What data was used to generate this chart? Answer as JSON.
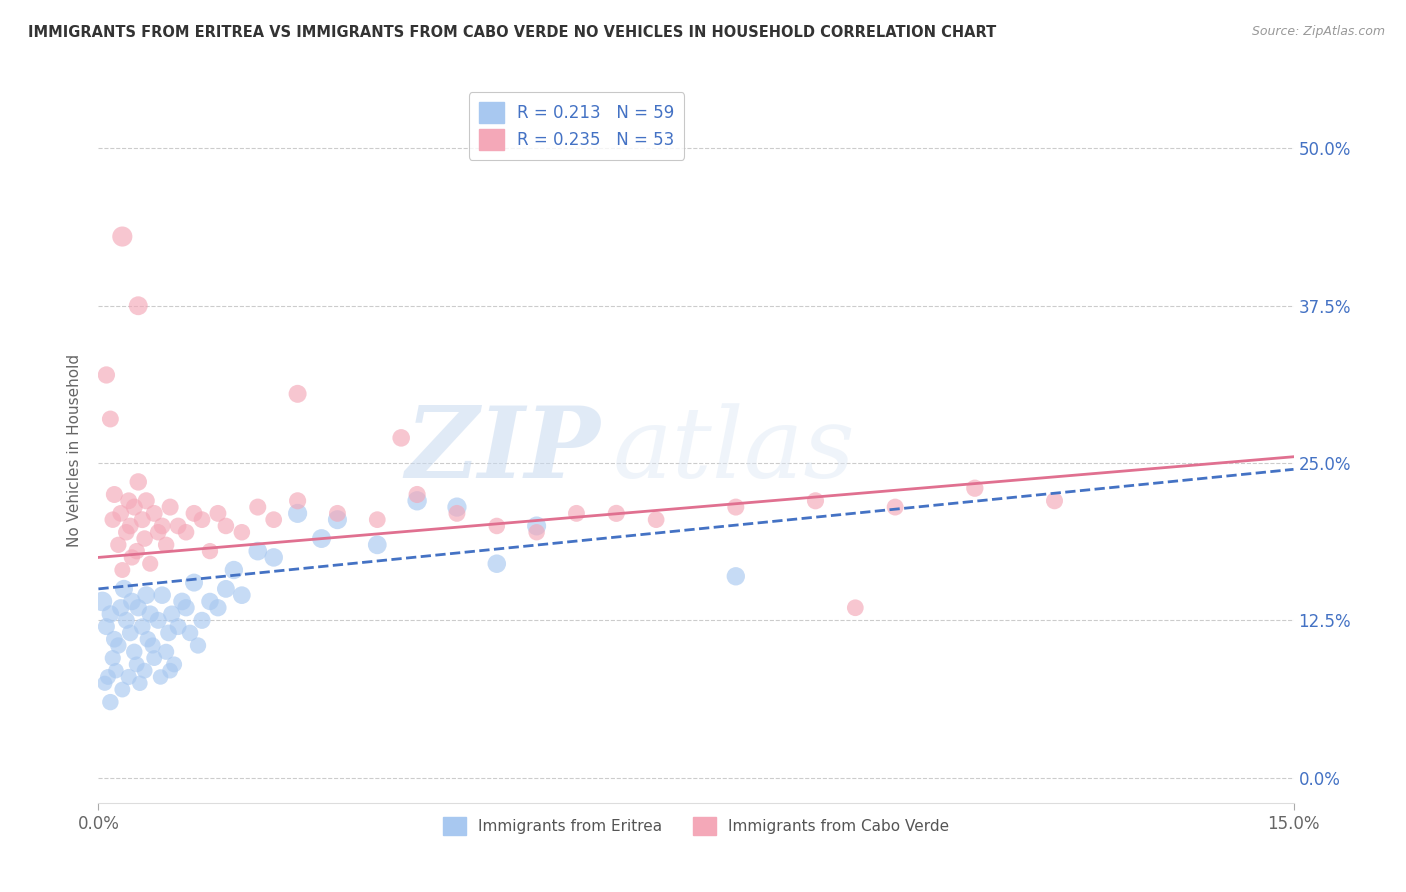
{
  "title": "IMMIGRANTS FROM ERITREA VS IMMIGRANTS FROM CABO VERDE NO VEHICLES IN HOUSEHOLD CORRELATION CHART",
  "source": "Source: ZipAtlas.com",
  "ylabel": "No Vehicles in Household",
  "ytick_vals": [
    0.0,
    12.5,
    25.0,
    37.5,
    50.0
  ],
  "xmin": 0.0,
  "xmax": 15.0,
  "ymin": -2.0,
  "ymax": 54.0,
  "legend1_label": "R = 0.213   N = 59",
  "legend2_label": "R = 0.235   N = 53",
  "legend_xlabel": "Immigrants from Eritrea",
  "legend_ylabel": "Immigrants from Cabo Verde",
  "color_eritrea": "#a8c8f0",
  "color_cabo": "#f4a8b8",
  "line_color_eritrea": "#4472c4",
  "line_color_cabo": "#e07090",
  "watermark_zip": "ZIP",
  "watermark_atlas": "atlas",
  "eritrea_x": [
    0.05,
    0.08,
    0.1,
    0.12,
    0.15,
    0.15,
    0.18,
    0.2,
    0.22,
    0.25,
    0.28,
    0.3,
    0.32,
    0.35,
    0.38,
    0.4,
    0.42,
    0.45,
    0.48,
    0.5,
    0.52,
    0.55,
    0.58,
    0.6,
    0.62,
    0.65,
    0.68,
    0.7,
    0.75,
    0.78,
    0.8,
    0.85,
    0.88,
    0.9,
    0.92,
    0.95,
    1.0,
    1.05,
    1.1,
    1.15,
    1.2,
    1.25,
    1.3,
    1.4,
    1.5,
    1.6,
    1.7,
    1.8,
    2.0,
    2.2,
    2.5,
    2.8,
    3.0,
    3.5,
    4.0,
    4.5,
    5.0,
    5.5,
    8.0
  ],
  "eritrea_y": [
    14.0,
    7.5,
    12.0,
    8.0,
    13.0,
    6.0,
    9.5,
    11.0,
    8.5,
    10.5,
    13.5,
    7.0,
    15.0,
    12.5,
    8.0,
    11.5,
    14.0,
    10.0,
    9.0,
    13.5,
    7.5,
    12.0,
    8.5,
    14.5,
    11.0,
    13.0,
    10.5,
    9.5,
    12.5,
    8.0,
    14.5,
    10.0,
    11.5,
    8.5,
    13.0,
    9.0,
    12.0,
    14.0,
    13.5,
    11.5,
    15.5,
    10.5,
    12.5,
    14.0,
    13.5,
    15.0,
    16.5,
    14.5,
    18.0,
    17.5,
    21.0,
    19.0,
    20.5,
    18.5,
    22.0,
    21.5,
    17.0,
    20.0,
    16.0
  ],
  "eritrea_size": [
    200,
    120,
    150,
    130,
    160,
    140,
    135,
    145,
    125,
    140,
    155,
    130,
    170,
    150,
    135,
    145,
    160,
    140,
    130,
    155,
    125,
    145,
    130,
    165,
    140,
    155,
    135,
    130,
    150,
    125,
    160,
    135,
    145,
    128,
    152,
    132,
    148,
    162,
    155,
    142,
    168,
    138,
    152,
    158,
    155,
    165,
    175,
    162,
    180,
    178,
    190,
    185,
    188,
    182,
    195,
    192,
    178,
    188,
    175
  ],
  "cabo_x": [
    0.1,
    0.15,
    0.18,
    0.2,
    0.25,
    0.28,
    0.3,
    0.35,
    0.38,
    0.4,
    0.42,
    0.45,
    0.48,
    0.5,
    0.55,
    0.58,
    0.6,
    0.65,
    0.7,
    0.75,
    0.8,
    0.85,
    0.9,
    1.0,
    1.1,
    1.2,
    1.3,
    1.4,
    1.5,
    1.6,
    1.8,
    2.0,
    2.2,
    2.5,
    3.0,
    3.5,
    4.0,
    4.5,
    5.0,
    5.5,
    6.0,
    7.0,
    8.0,
    9.0,
    10.0,
    11.0,
    12.0,
    0.3,
    0.5,
    2.5,
    3.8,
    6.5,
    9.5
  ],
  "cabo_y": [
    32.0,
    28.5,
    20.5,
    22.5,
    18.5,
    21.0,
    16.5,
    19.5,
    22.0,
    20.0,
    17.5,
    21.5,
    18.0,
    23.5,
    20.5,
    19.0,
    22.0,
    17.0,
    21.0,
    19.5,
    20.0,
    18.5,
    21.5,
    20.0,
    19.5,
    21.0,
    20.5,
    18.0,
    21.0,
    20.0,
    19.5,
    21.5,
    20.5,
    22.0,
    21.0,
    20.5,
    22.5,
    21.0,
    20.0,
    19.5,
    21.0,
    20.5,
    21.5,
    22.0,
    21.5,
    23.0,
    22.0,
    43.0,
    37.5,
    30.5,
    27.0,
    21.0,
    13.5
  ],
  "cabo_size": [
    155,
    148,
    142,
    150,
    138,
    145,
    132,
    142,
    148,
    145,
    138,
    150,
    140,
    158,
    148,
    142,
    152,
    135,
    148,
    142,
    145,
    140,
    150,
    145,
    142,
    148,
    145,
    138,
    148,
    142,
    142,
    150,
    145,
    152,
    148,
    145,
    152,
    148,
    142,
    140,
    148,
    145,
    150,
    152,
    148,
    155,
    150,
    210,
    185,
    168,
    160,
    152,
    145
  ],
  "line_eritrea_x0": 0.0,
  "line_eritrea_y0": 15.0,
  "line_eritrea_x1": 15.0,
  "line_eritrea_y1": 24.5,
  "line_cabo_x0": 0.0,
  "line_cabo_y0": 17.5,
  "line_cabo_x1": 15.0,
  "line_cabo_y1": 25.5
}
